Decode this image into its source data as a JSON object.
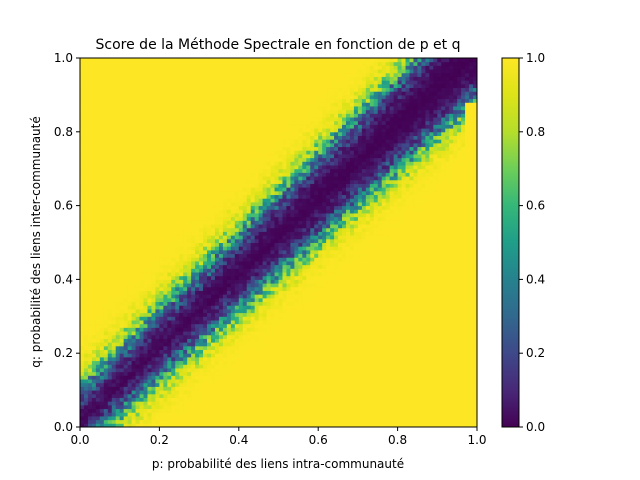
{
  "chart_data": {
    "type": "heatmap",
    "title": "Score de la Méthode Spectrale en fonction de p et q",
    "xlabel": "p: probabilité des liens intra-communauté",
    "ylabel": "q: probabilité des liens inter-communauté",
    "xlim": [
      0.0,
      1.0
    ],
    "ylim": [
      0.0,
      1.0
    ],
    "xticks": [
      "0.0",
      "0.2",
      "0.4",
      "0.6",
      "0.8",
      "1.0"
    ],
    "yticks": [
      "0.0",
      "0.2",
      "0.4",
      "0.6",
      "0.8",
      "1.0"
    ],
    "grid_resolution": 100,
    "colormap": "viridis",
    "colorbar": {
      "range": [
        0.0,
        1.0
      ],
      "ticks": [
        "0.0",
        "0.2",
        "0.4",
        "0.6",
        "0.8",
        "1.0"
      ]
    },
    "pattern": "value ≈ 1 away from the diagonal p = q; a band near the diagonal (|p − q| below ~0.1–0.15) has value ≈ 0, with a noisy transition at the band edges"
  }
}
